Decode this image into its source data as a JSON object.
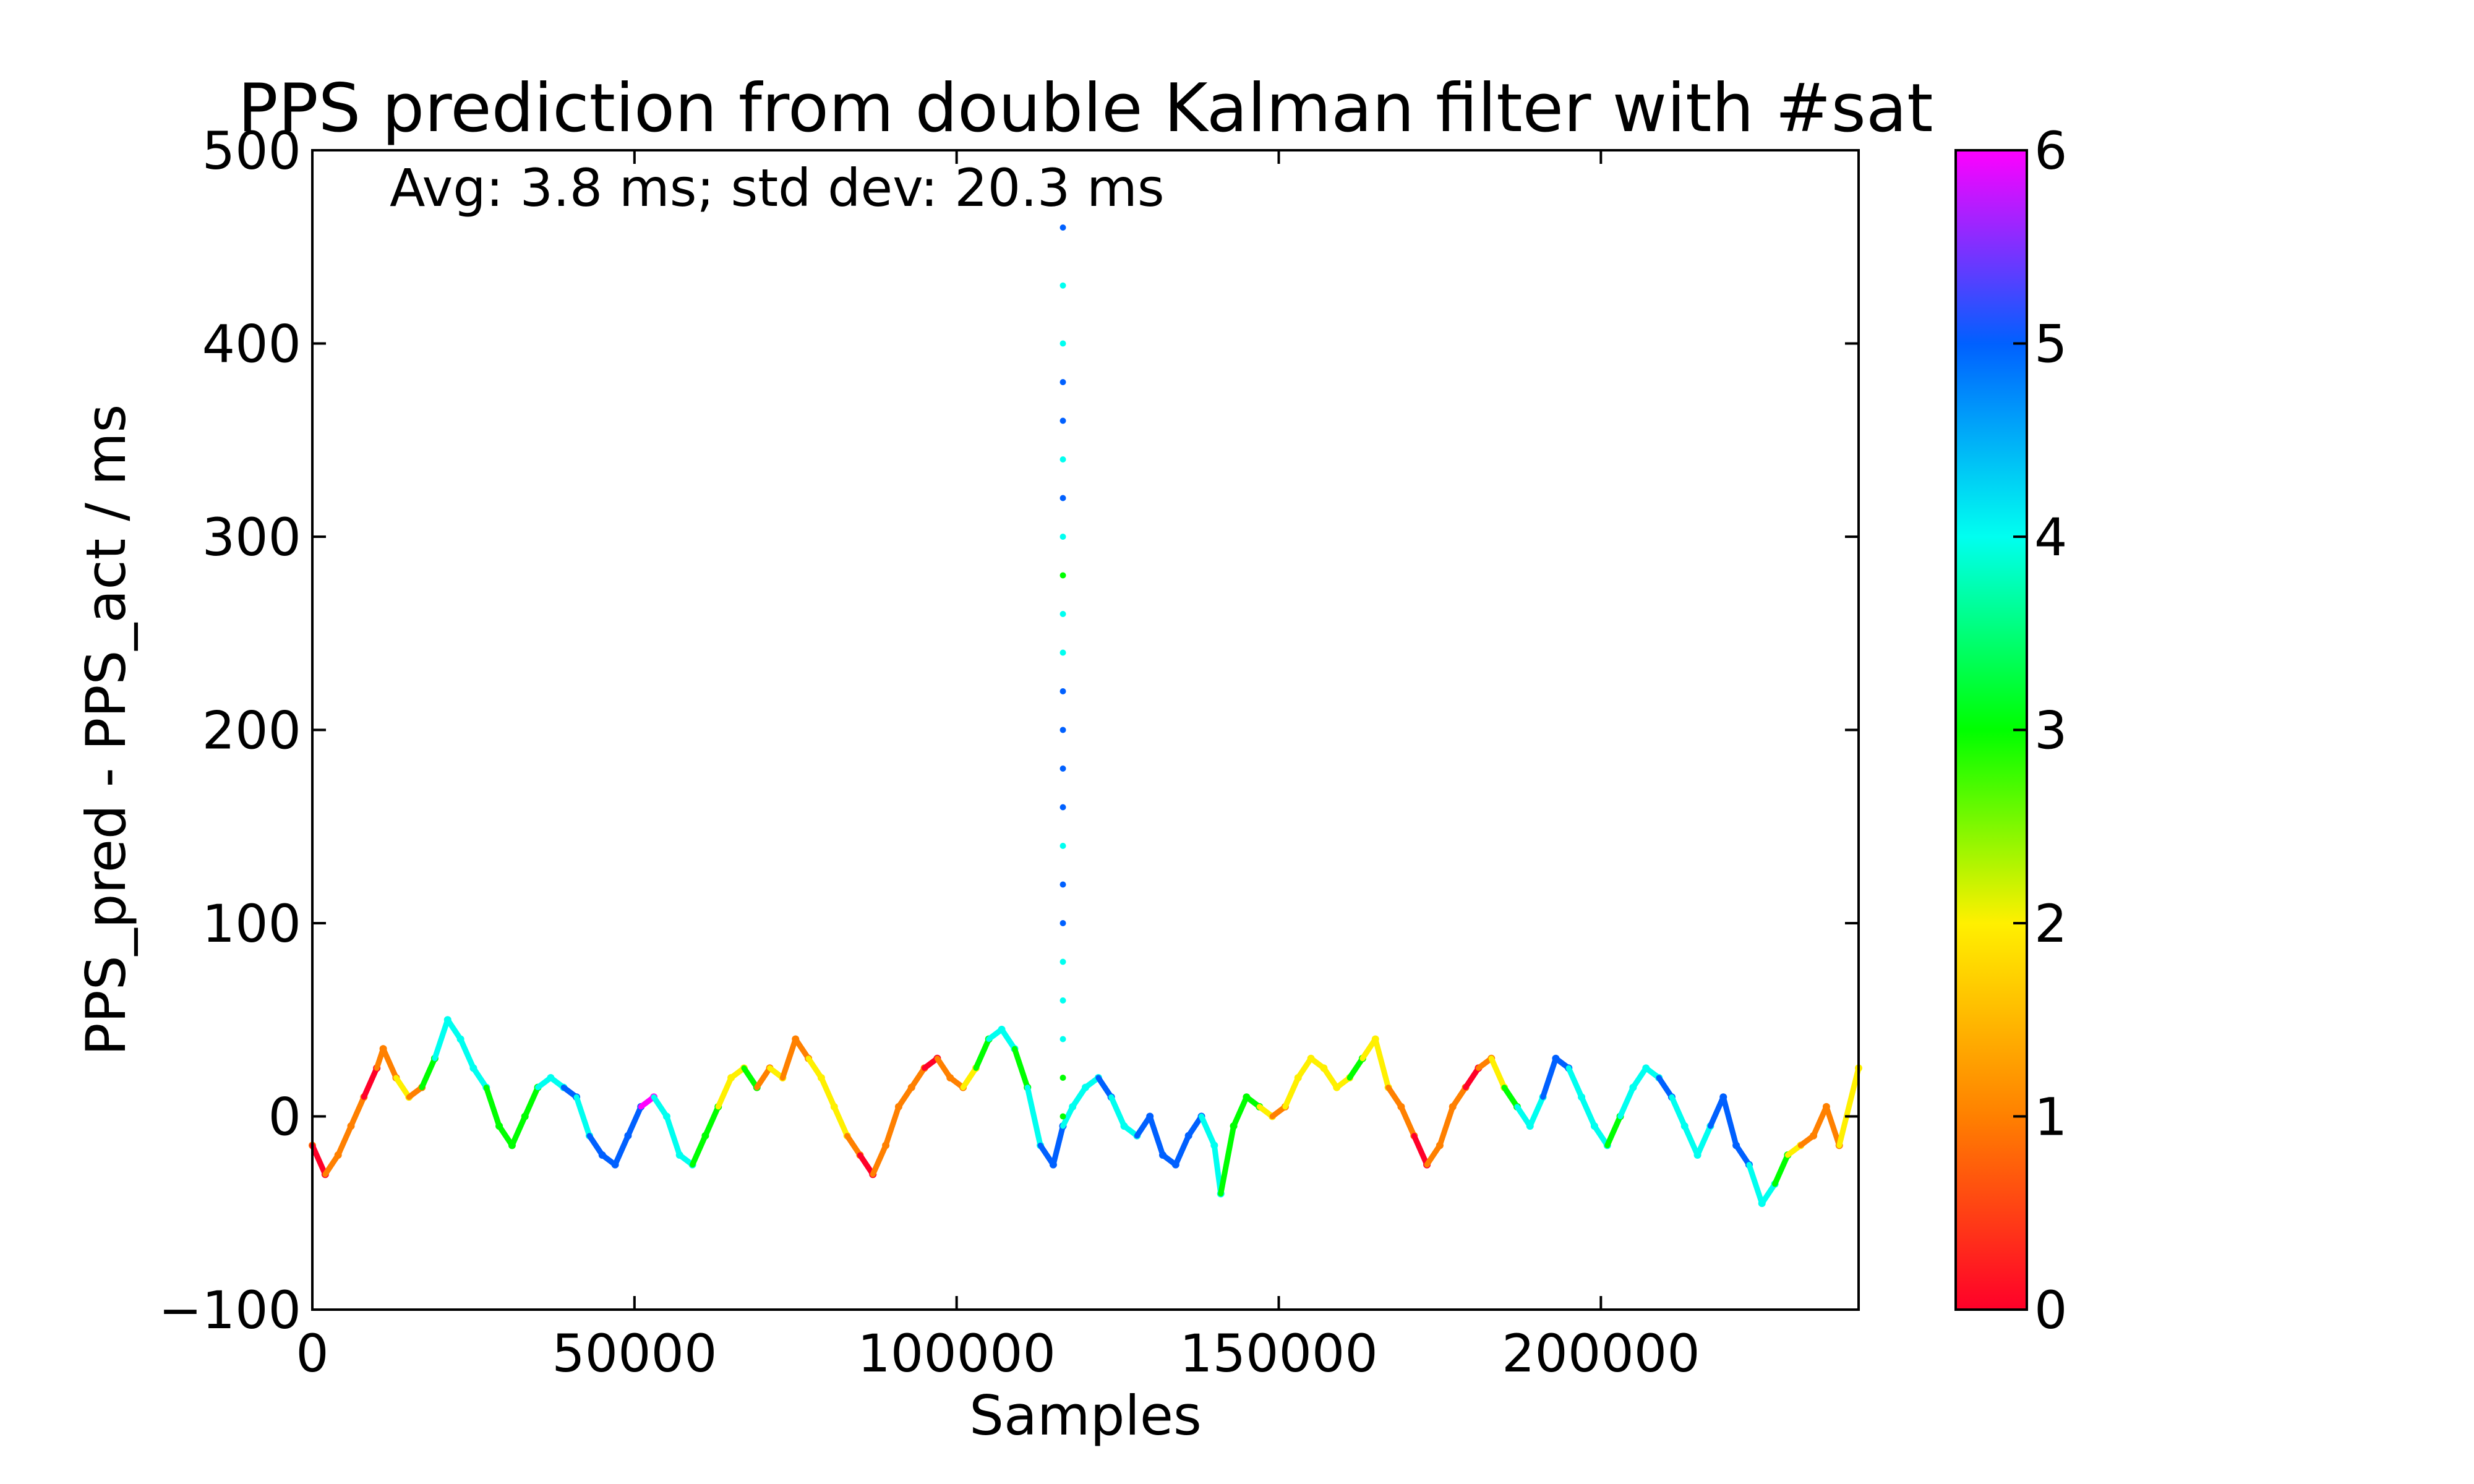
{
  "chart_data": {
    "type": "scatter",
    "title": "PPS prediction from double Kalman filter with #sat",
    "annotation": "Avg: 3.8 ms;  std dev: 20.3 ms",
    "xlabel": "Samples",
    "ylabel": "PPS_pred - PPS_act / ms",
    "xlim": [
      0,
      240000
    ],
    "ylim": [
      -100,
      500
    ],
    "xticks": [
      0,
      50000,
      100000,
      150000,
      200000
    ],
    "xtick_labels": [
      "0",
      "50000",
      "100000",
      "150000",
      "200000"
    ],
    "yticks": [
      -100,
      0,
      100,
      200,
      300,
      400,
      500
    ],
    "ytick_labels": [
      "−100",
      "0",
      "100",
      "200",
      "300",
      "400",
      "500"
    ],
    "grid": false,
    "colorbar": {
      "label": "",
      "range": [
        0,
        6
      ],
      "ticks": [
        0,
        1,
        2,
        3,
        4,
        5,
        6
      ],
      "tick_labels": [
        "0",
        "1",
        "2",
        "3",
        "4",
        "5",
        "6"
      ],
      "colormap": "gist_rainbow_r",
      "colors": [
        "#ff0029",
        "#ff8000",
        "#fff000",
        "#00ff00",
        "#00fff0",
        "#0060ff",
        "#ff00ff"
      ]
    },
    "series": [
      {
        "x": [
          0,
          2000,
          4000,
          6000,
          8000,
          10000,
          11000,
          13000,
          15000,
          17000,
          19000,
          21000,
          23000,
          25000,
          27000,
          29000,
          31000,
          33000,
          35000,
          37000,
          39000,
          41000,
          43000,
          45000,
          47000,
          49000,
          51000,
          53000,
          55000,
          57000,
          59000,
          61000,
          63000,
          65000,
          67000,
          69000,
          71000,
          73000,
          75000,
          77000,
          79000,
          81000,
          83000,
          85000,
          87000,
          89000,
          91000,
          93000,
          95000,
          97000,
          99000,
          101000,
          103000,
          105000,
          107000,
          109000,
          111000,
          113000,
          115000,
          116500,
          118000,
          120000,
          122000,
          124000,
          126000,
          128000,
          130000,
          132000,
          134000,
          136000,
          138000,
          140000,
          141000,
          143000,
          145000,
          147000,
          149000,
          151000,
          153000,
          155000,
          157000,
          159000,
          161000,
          163000,
          165000,
          167000,
          169000,
          171000,
          173000,
          175000,
          177000,
          179000,
          181000,
          183000,
          185000,
          187000,
          189000,
          191000,
          193000,
          195000,
          197000,
          199000,
          201000,
          203000,
          205000,
          207000,
          209000,
          211000,
          213000,
          215000,
          217000,
          219000,
          221000,
          223000,
          225000,
          227000,
          229000,
          231000,
          233000,
          235000,
          237000,
          240000
        ],
        "y": [
          -15,
          -30,
          -20,
          -5,
          10,
          25,
          35,
          20,
          10,
          15,
          30,
          50,
          40,
          25,
          15,
          -5,
          -15,
          0,
          15,
          20,
          15,
          10,
          -10,
          -20,
          -25,
          -10,
          5,
          10,
          0,
          -20,
          -25,
          -10,
          5,
          20,
          25,
          15,
          25,
          20,
          40,
          30,
          20,
          5,
          -10,
          -20,
          -30,
          -15,
          5,
          15,
          25,
          30,
          20,
          15,
          25,
          40,
          45,
          35,
          15,
          -15,
          -25,
          -5,
          5,
          15,
          20,
          10,
          -5,
          -10,
          0,
          -20,
          -25,
          -10,
          0,
          -15,
          -40,
          -5,
          10,
          5,
          0,
          5,
          20,
          30,
          25,
          15,
          20,
          30,
          40,
          15,
          5,
          -10,
          -25,
          -15,
          5,
          15,
          25,
          30,
          15,
          5,
          -5,
          10,
          30,
          25,
          10,
          -5,
          -15,
          0,
          15,
          25,
          20,
          10,
          -5,
          -20,
          -5,
          10,
          -15,
          -25,
          -45,
          -35,
          -20,
          -15,
          -10,
          5,
          -15,
          25
        ],
        "c": [
          1,
          0,
          1,
          1,
          1,
          0,
          1,
          1,
          2,
          1,
          3,
          4,
          4,
          4,
          4,
          3,
          3,
          3,
          3,
          4,
          4,
          5,
          4,
          5,
          5,
          5,
          5,
          6,
          4,
          4,
          4,
          3,
          3,
          2,
          2,
          3,
          1,
          2,
          1,
          1,
          2,
          2,
          2,
          1,
          0,
          1,
          1,
          1,
          1,
          0,
          1,
          1,
          2,
          3,
          4,
          4,
          3,
          4,
          5,
          5,
          4,
          4,
          4,
          5,
          4,
          4,
          5,
          5,
          5,
          5,
          5,
          4,
          4,
          3,
          3,
          3,
          2,
          1,
          2,
          2,
          2,
          2,
          2,
          3,
          2,
          2,
          1,
          1,
          0,
          1,
          1,
          1,
          0,
          1,
          2,
          3,
          4,
          4,
          5,
          5,
          4,
          4,
          4,
          3,
          4,
          4,
          4,
          5,
          4,
          4,
          4,
          5,
          5,
          5,
          4,
          4,
          3,
          2,
          1,
          1,
          1,
          2
        ]
      },
      {
        "x": [
          116500,
          116500,
          116500,
          116500,
          116500,
          116500,
          116500,
          116500,
          116500,
          116500,
          116500,
          116500,
          116500,
          116500,
          116500,
          116500,
          116500,
          116500,
          116500,
          116500,
          116500,
          116500,
          116500
        ],
        "y": [
          0,
          20,
          40,
          60,
          80,
          100,
          120,
          140,
          160,
          180,
          200,
          220,
          240,
          260,
          280,
          300,
          320,
          340,
          360,
          380,
          400,
          430,
          460
        ],
        "c": [
          3,
          3,
          4,
          4,
          4,
          5,
          5,
          4,
          5,
          5,
          5,
          5,
          4,
          4,
          3,
          4,
          5,
          4,
          5,
          5,
          4,
          4,
          5
        ]
      }
    ]
  }
}
